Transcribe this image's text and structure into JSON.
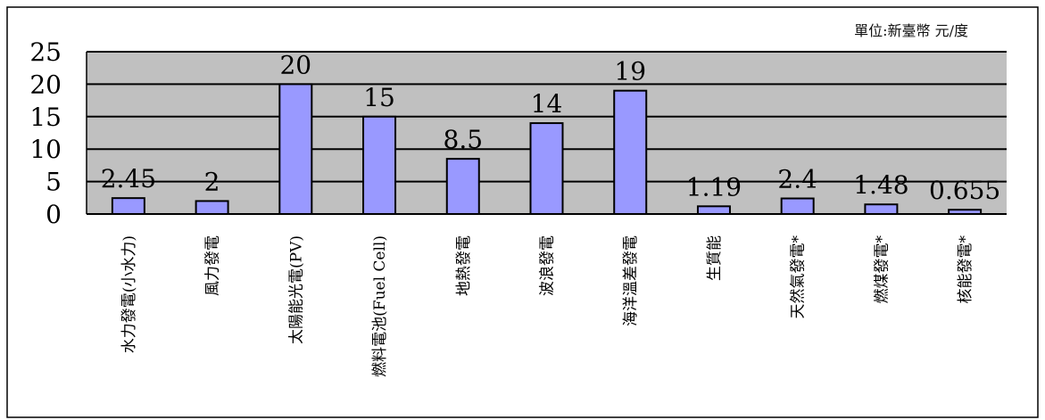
{
  "chart_data": {
    "type": "bar",
    "unit_note": "單位:新臺幣 元/度",
    "categories": [
      "水力發電(小水力)",
      "風力發電",
      "太陽能光電(PV)",
      "燃料電池(Fuel Cell)",
      "地熱發電",
      "波浪發電",
      "海洋溫差發電",
      "生質能",
      "天然氣發電*",
      "燃煤發電*",
      "核能發電*"
    ],
    "values": [
      2.45,
      2,
      20,
      15,
      8.5,
      14,
      19,
      1.19,
      2.4,
      1.48,
      0.655
    ],
    "data_labels": [
      "2.45",
      "2",
      "20",
      "15",
      "8.5",
      "14",
      "19",
      "1.19",
      "2.4",
      "1.48",
      "0.655"
    ],
    "yticks": [
      "0",
      "5",
      "10",
      "15",
      "20",
      "25"
    ],
    "ylim": [
      0,
      25
    ],
    "grid": true,
    "legend": "none",
    "colors": {
      "bar_fill": "#9999ff",
      "bar_stroke": "#000000",
      "plot_background": "#c0c0c0",
      "gridline": "#000000",
      "frame": "#000000"
    }
  }
}
